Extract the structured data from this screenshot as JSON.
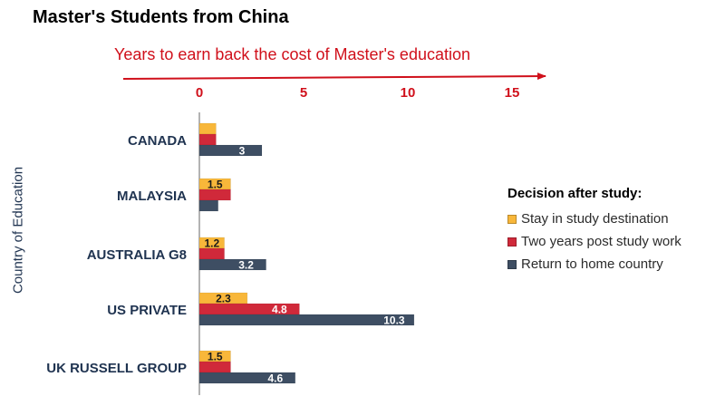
{
  "title": "Master's Students from China",
  "axis_caption": "Years to earn back the cost of Master's education",
  "colors": {
    "stay": "#f8b73a",
    "post_study_work": "#d0293a",
    "return_home": "#3e4e63",
    "caption": "#d0101b",
    "category_label": "#1f3350"
  },
  "chart_data": {
    "type": "bar",
    "orientation": "horizontal",
    "x_axis_position": "top",
    "xlim": [
      0,
      15
    ],
    "xticks": [
      0,
      5,
      10,
      15
    ],
    "xlabel": "Years to earn back the cost of Master's education",
    "ylabel": "Country of Education",
    "categories": [
      "CANADA",
      "MALAYSIA",
      "AUSTRALIA G8",
      "US PRIVATE",
      "UK RUSSELL GROUP"
    ],
    "series": [
      {
        "name": "Stay in study destination",
        "color": "#f8b73a",
        "values": [
          0.8,
          1.5,
          1.2,
          2.3,
          1.5
        ],
        "labels": [
          "",
          "1.5",
          "1.2",
          "2.3",
          "1.5"
        ]
      },
      {
        "name": "Two years post study work",
        "color": "#d0293a",
        "values": [
          0.8,
          1.5,
          1.2,
          4.8,
          1.5
        ],
        "labels": [
          "",
          "",
          "",
          "4.8",
          ""
        ]
      },
      {
        "name": "Return to home country",
        "color": "#3e4e63",
        "values": [
          3,
          0.9,
          3.2,
          10.3,
          4.6
        ],
        "labels": [
          "3",
          "",
          "3.2",
          "10.3",
          "4.6"
        ]
      }
    ],
    "legend": {
      "title": "Decision after study:",
      "position": "right"
    },
    "grid": false
  }
}
